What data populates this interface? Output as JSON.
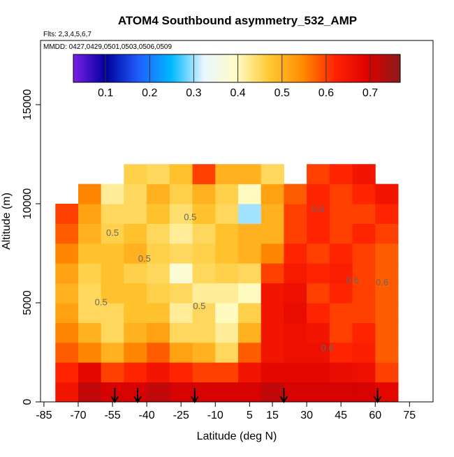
{
  "chart_data": {
    "type": "heatmap",
    "title": "ATOM4 Southbound asymmetry_532_AMP",
    "subtitle": "Flts: 2,3,4,5,6,7",
    "subtitle2": "MMDD: 0427,0429,0501,0503,0506,0509",
    "x_label": "Latitude (deg N)",
    "y_label": "Altitude (m)",
    "xlim": [
      -86.5,
      85.3
    ],
    "xticks": [
      -85,
      -70,
      -55,
      -40,
      -25,
      -10,
      5,
      15,
      30,
      45,
      60,
      75
    ],
    "ylim": [
      0,
      18240
    ],
    "yticks": [
      0,
      5000,
      10000,
      15000
    ],
    "clim": [
      0.027,
      0.768
    ],
    "cticks": [
      0.1,
      0.2,
      0.3,
      0.4,
      0.5,
      0.6,
      0.7
    ],
    "colormap": [
      "#7a1fe8",
      "#00009a",
      "#1f5fff",
      "#00b8ff",
      "#eaf6ff",
      "#fffcc4",
      "#ffc832",
      "#ff8c00",
      "#ff2400",
      "#de0000",
      "#8b1a1a"
    ],
    "bins_x": [
      -80,
      -70,
      -60,
      -50,
      -40,
      -30,
      -20,
      -10,
      0,
      10,
      20,
      30,
      40,
      50,
      60,
      70
    ],
    "bins_y": [
      0,
      1000,
      2000,
      3000,
      4000,
      5000,
      6000,
      7000,
      8000,
      9000,
      10000,
      11000,
      12000
    ],
    "z": [
      [
        0.65,
        0.72,
        0.7,
        0.7,
        0.72,
        0.7,
        0.7,
        0.7,
        0.7,
        0.72,
        0.7,
        0.7,
        0.7,
        0.7,
        0.68
      ],
      [
        0.62,
        0.68,
        0.6,
        0.62,
        0.65,
        0.62,
        0.6,
        0.6,
        0.65,
        0.68,
        0.68,
        0.68,
        0.67,
        0.66,
        0.6
      ],
      [
        0.58,
        0.55,
        0.5,
        0.55,
        0.58,
        0.52,
        0.5,
        0.45,
        0.58,
        0.65,
        0.66,
        0.66,
        0.62,
        0.63,
        0.58
      ],
      [
        0.55,
        0.5,
        0.45,
        0.5,
        0.52,
        0.45,
        0.45,
        0.42,
        0.5,
        0.65,
        0.66,
        0.65,
        0.6,
        0.62,
        0.58
      ],
      [
        0.52,
        0.45,
        0.45,
        0.48,
        0.48,
        0.42,
        0.45,
        0.4,
        0.46,
        0.65,
        0.67,
        0.62,
        0.6,
        0.6,
        0.58
      ],
      [
        0.5,
        0.45,
        0.48,
        0.48,
        0.46,
        0.45,
        0.42,
        0.42,
        0.4,
        0.65,
        0.66,
        0.6,
        0.62,
        0.6,
        0.58
      ],
      [
        0.52,
        0.46,
        0.48,
        0.46,
        0.45,
        0.38,
        0.45,
        0.46,
        0.45,
        0.6,
        0.64,
        0.62,
        0.63,
        0.6,
        0.58
      ],
      [
        0.55,
        0.48,
        0.48,
        0.5,
        0.46,
        0.45,
        0.46,
        0.48,
        0.5,
        0.55,
        0.62,
        0.6,
        0.62,
        0.6,
        0.58
      ],
      [
        0.58,
        0.5,
        0.46,
        0.48,
        0.45,
        0.42,
        0.45,
        0.48,
        0.5,
        0.5,
        0.6,
        0.62,
        0.6,
        0.62,
        0.6
      ],
      [
        0.6,
        0.52,
        0.45,
        0.45,
        0.48,
        0.44,
        0.48,
        0.45,
        0.3,
        0.5,
        0.6,
        0.62,
        0.6,
        0.6,
        0.62
      ],
      [
        null,
        0.55,
        0.42,
        0.45,
        0.5,
        0.46,
        0.5,
        0.46,
        0.4,
        0.52,
        0.58,
        0.62,
        0.6,
        0.62,
        0.65
      ],
      [
        null,
        null,
        null,
        0.46,
        0.45,
        0.48,
        0.6,
        0.5,
        0.5,
        0.45,
        null,
        0.6,
        0.62,
        0.65,
        null
      ]
    ],
    "contour_labels": [
      {
        "x": -55,
        "y": 8500,
        "value": 0.5
      },
      {
        "x": -41,
        "y": 7200,
        "value": 0.5
      },
      {
        "x": -21,
        "y": 9300,
        "value": 0.5
      },
      {
        "x": -60,
        "y": 5000,
        "value": 0.5
      },
      {
        "x": -17,
        "y": 4800,
        "value": 0.5
      },
      {
        "x": 50,
        "y": 6100,
        "value": 0.6
      },
      {
        "x": 35,
        "y": 9700,
        "value": 0.6
      },
      {
        "x": 63,
        "y": 6000,
        "value": 0.6
      },
      {
        "x": 39,
        "y": 2700,
        "value": 0.6
      }
    ],
    "arrows_x": [
      -54,
      -44,
      -19,
      20,
      61
    ]
  }
}
